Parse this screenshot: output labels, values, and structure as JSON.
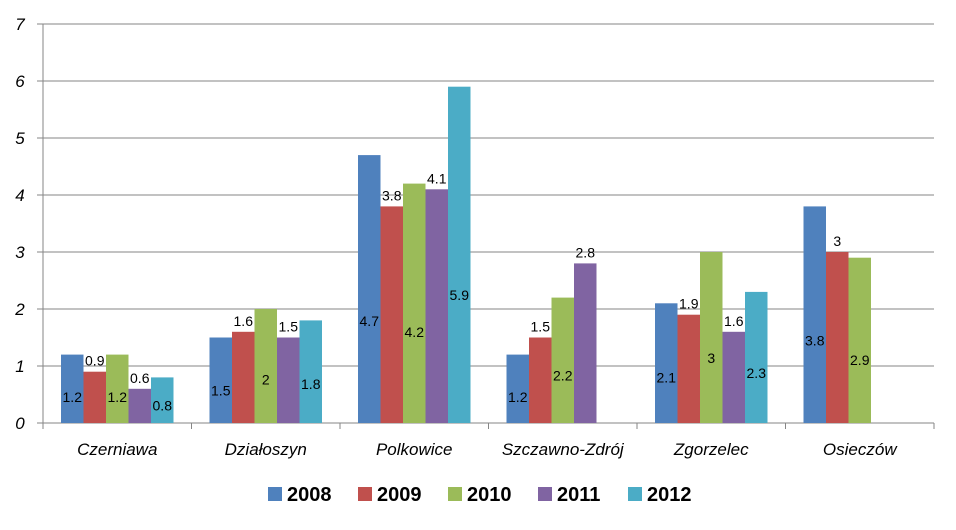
{
  "chart_data": {
    "type": "bar",
    "categories": [
      "Czerniawa",
      "Działoszyn",
      "Polkowice",
      "Szczawno-Zdrój",
      "Zgorzelec",
      "Osieczów"
    ],
    "series": [
      {
        "name": "2008",
        "color": "#4F81BD",
        "values": [
          1.2,
          1.5,
          4.7,
          1.2,
          2.1,
          3.8
        ]
      },
      {
        "name": "2009",
        "color": "#C0504D",
        "values": [
          0.9,
          1.6,
          3.8,
          1.5,
          1.9,
          3
        ]
      },
      {
        "name": "2010",
        "color": "#9BBB59",
        "values": [
          1.2,
          2,
          4.2,
          2.2,
          3,
          2.9
        ]
      },
      {
        "name": "2011",
        "color": "#8064A2",
        "values": [
          0.6,
          1.5,
          4.1,
          2.8,
          1.6,
          null
        ]
      },
      {
        "name": "2012",
        "color": "#4BACC6",
        "values": [
          0.8,
          1.8,
          5.9,
          null,
          2.3,
          null
        ]
      }
    ],
    "ylim": [
      0,
      7
    ],
    "yticks": [
      0,
      1,
      2,
      3,
      4,
      5,
      6,
      7
    ],
    "grid": true,
    "legend": "bottom"
  }
}
